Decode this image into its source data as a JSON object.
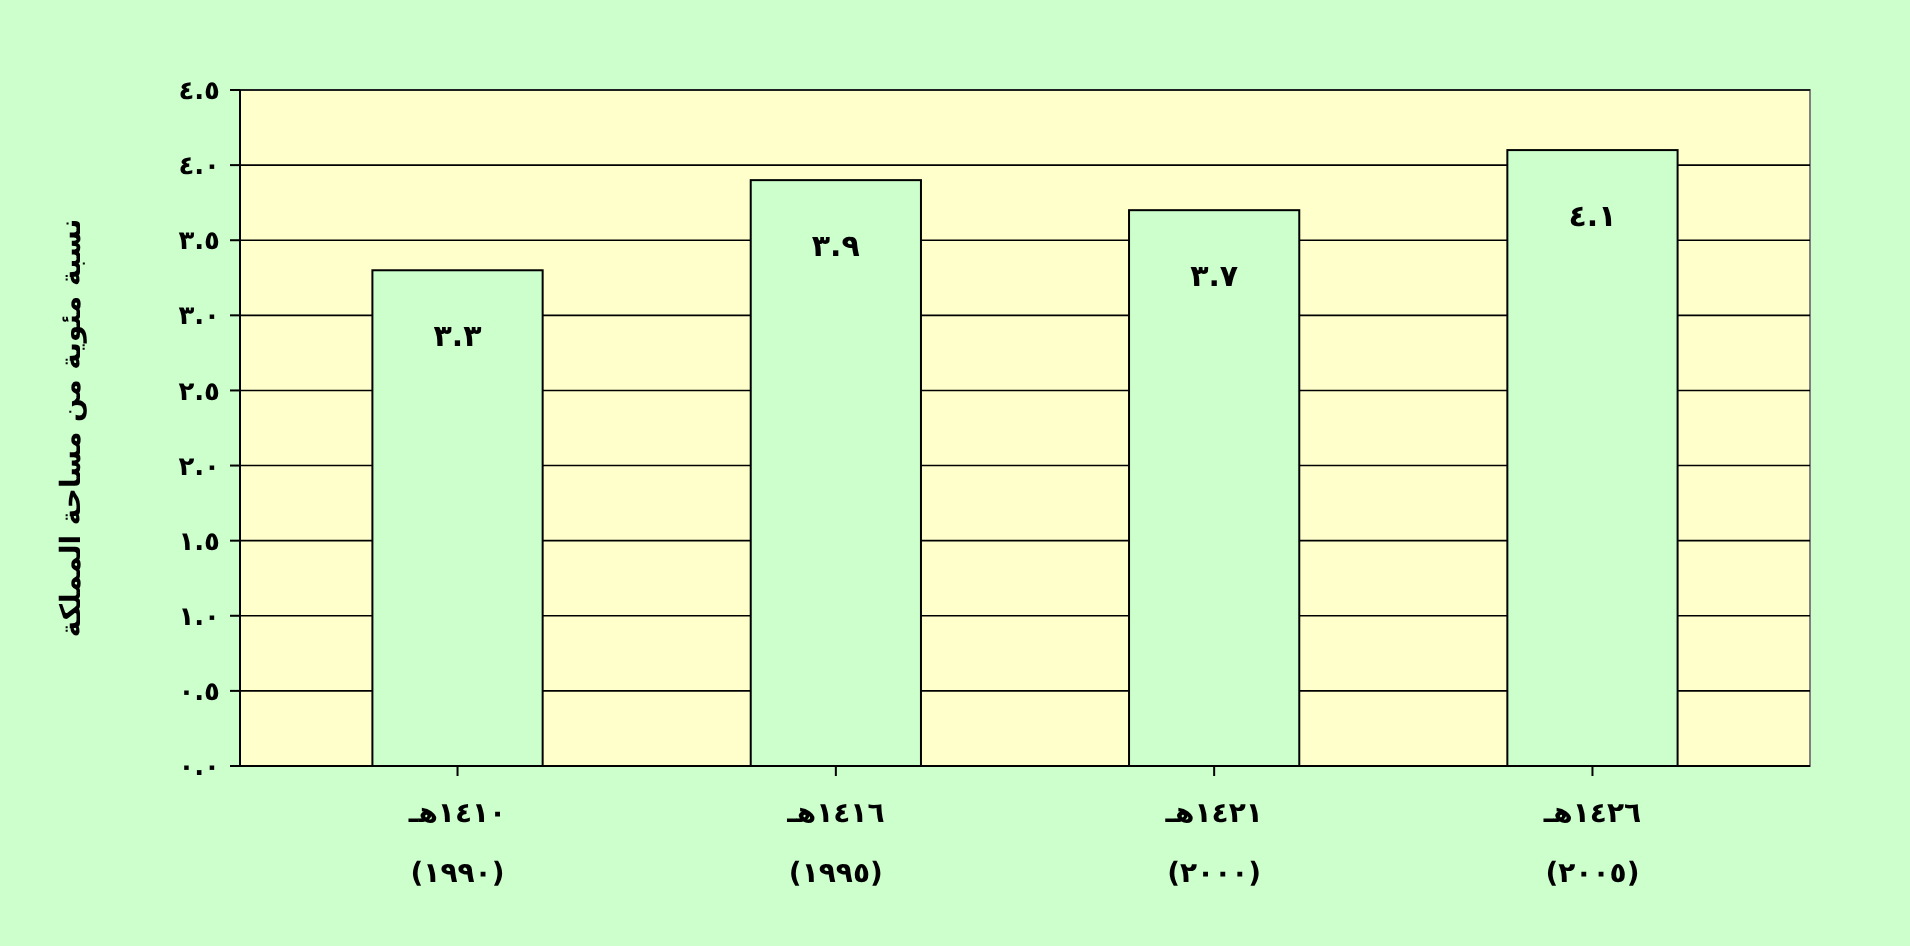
{
  "chart_data": {
    "type": "bar",
    "ylabel": "نسبة مئوية من مساحة المملكة",
    "categories": [
      "١٤١٠هـ\n(١٩٩٠)",
      "١٤١٦هـ\n(١٩٩٥)",
      "١٤٢١هـ\n(٢٠٠٠)",
      "١٤٢٦هـ\n(٢٠٠٥)"
    ],
    "values": [
      3.3,
      3.9,
      3.7,
      4.1
    ],
    "value_labels": [
      "٣.٣",
      "٣.٩",
      "٣.٧",
      "٤.١"
    ],
    "color": "#ccffcc",
    "ylim": [
      0,
      4.5
    ],
    "yticks": [
      {
        "value": 0,
        "label": "٠.٠"
      },
      {
        "value": 0.5,
        "label": "٠.٥"
      },
      {
        "value": 1,
        "label": "١.٠"
      },
      {
        "value": 1.5,
        "label": "١.٥"
      },
      {
        "value": 2,
        "label": "٢.٠"
      },
      {
        "value": 2.5,
        "label": "٢.٥"
      },
      {
        "value": 3,
        "label": "٣.٠"
      },
      {
        "value": 3.5,
        "label": "٣.٥"
      },
      {
        "value": 4,
        "label": "٤.٠"
      },
      {
        "value": 4.5,
        "label": "٤.٥"
      }
    ],
    "grid": "y"
  }
}
